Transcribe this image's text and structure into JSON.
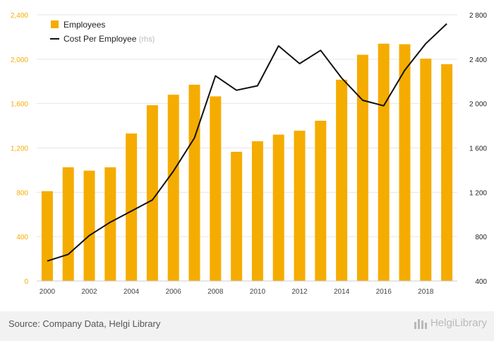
{
  "chart_data": {
    "type": "bar+line",
    "categories": [
      "2000",
      "2001",
      "2002",
      "2003",
      "2004",
      "2005",
      "2006",
      "2007",
      "2008",
      "2009",
      "2010",
      "2011",
      "2012",
      "2013",
      "2014",
      "2015",
      "2016",
      "2017",
      "2018",
      "2019"
    ],
    "x_tick_labels": [
      "2000",
      "2002",
      "2004",
      "2006",
      "2008",
      "2010",
      "2012",
      "2014",
      "2016",
      "2018"
    ],
    "series": [
      {
        "name": "Employees",
        "type": "bar",
        "axis": "left",
        "color": "#f5ac00",
        "values": [
          810,
          1025,
          995,
          1025,
          1330,
          1585,
          1680,
          1770,
          1665,
          1165,
          1260,
          1320,
          1355,
          1445,
          1815,
          2040,
          2140,
          2135,
          2005,
          1955
        ]
      },
      {
        "name": "Cost Per Employee",
        "name_suffix": "(rhs)",
        "type": "line",
        "axis": "right",
        "color": "#111111",
        "values": [
          580,
          640,
          810,
          930,
          1030,
          1130,
          1390,
          1690,
          2250,
          2120,
          2160,
          2520,
          2360,
          2480,
          2230,
          2030,
          1980,
          2300,
          2540,
          2720
        ]
      }
    ],
    "y_left": {
      "min": 0,
      "max": 2400,
      "ticks": [
        "0",
        "400",
        "800",
        "1,200",
        "1,600",
        "2,000",
        "2,400"
      ]
    },
    "y_right": {
      "min": 400,
      "max": 2800,
      "ticks": [
        "400",
        "800",
        "1 200",
        "1 600",
        "2 000",
        "2 400",
        "2 800"
      ]
    },
    "legend_position": "top-left",
    "grid": "horizontal"
  },
  "footer": {
    "source": "Source: Company Data, Helgi Library",
    "logo_text": "HelgiLibrary"
  },
  "colors": {
    "left_axis_text": "#f5ac00",
    "right_axis_text": "#222222",
    "grid": "#e6e6e6",
    "footer_bg": "#f2f2f2"
  }
}
